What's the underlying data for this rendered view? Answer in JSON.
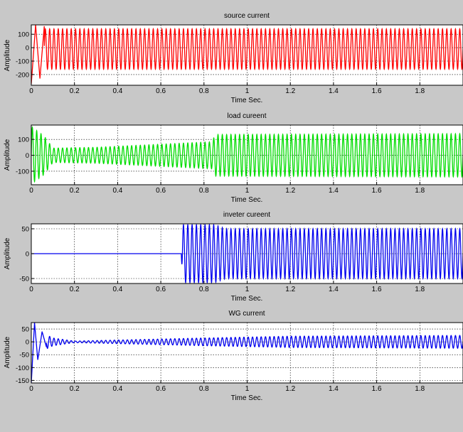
{
  "chart_data": [
    {
      "type": "line",
      "title": "source current",
      "xlabel": "Time Sec.",
      "ylabel": "Amplitude",
      "xlim": [
        0,
        2
      ],
      "ylim": [
        -280,
        170
      ],
      "xticks": [
        0,
        0.2,
        0.4,
        0.6,
        0.8,
        1,
        1.2,
        1.4,
        1.6,
        1.8
      ],
      "xtick_labels": [
        "0",
        "0.2",
        "0.4",
        "0.6",
        "0.8",
        "1",
        "1.2",
        "1.4",
        "1.6",
        "1.8"
      ],
      "yticks": [
        -200,
        -100,
        0,
        100
      ],
      "ytick_labels": [
        "-200",
        "-100",
        "0",
        "100"
      ],
      "grid": true,
      "series": [
        {
          "color": "#ff0000",
          "frequency_hz": 50,
          "amplitude_envelope": [
            [
              0,
              150
            ],
            [
              2,
              150
            ]
          ],
          "offset": -10,
          "transient": [
            [
              0,
              -270
            ],
            [
              0.02,
              170
            ],
            [
              0.04,
              -230
            ],
            [
              0.06,
              160
            ]
          ]
        }
      ]
    },
    {
      "type": "line",
      "title": "load cureent",
      "xlabel": "Time Sec.",
      "ylabel": "Amplitude",
      "xlim": [
        0,
        2
      ],
      "ylim": [
        -185,
        190
      ],
      "xticks": [
        0,
        0.2,
        0.4,
        0.6,
        0.8,
        1,
        1.2,
        1.4,
        1.6,
        1.8
      ],
      "xtick_labels": [
        "0",
        "0.2",
        "0.4",
        "0.6",
        "0.8",
        "1",
        "1.2",
        "1.4",
        "1.6",
        "1.8"
      ],
      "yticks": [
        -100,
        0,
        100
      ],
      "ytick_labels": [
        "-100",
        "0",
        "100"
      ],
      "grid": true,
      "series": [
        {
          "color": "#00dd00",
          "frequency_hz": 50,
          "amplitude_envelope": [
            [
              0,
              180
            ],
            [
              0.06,
              120
            ],
            [
              0.1,
              45
            ],
            [
              0.3,
              50
            ],
            [
              0.84,
              85
            ],
            [
              0.85,
              130
            ],
            [
              2,
              135
            ]
          ],
          "offset": 0,
          "transient": []
        }
      ]
    },
    {
      "type": "line",
      "title": "inveter cureent",
      "xlabel": "Time Sec.",
      "ylabel": "Amplitude",
      "xlim": [
        0,
        2
      ],
      "ylim": [
        -60,
        60
      ],
      "xticks": [
        0,
        0.2,
        0.4,
        0.6,
        0.8,
        1,
        1.2,
        1.4,
        1.6,
        1.8
      ],
      "xtick_labels": [
        "0",
        "0.2",
        "0.4",
        "0.6",
        "0.8",
        "1",
        "1.2",
        "1.4",
        "1.6",
        "1.8"
      ],
      "yticks": [
        -50,
        0,
        50
      ],
      "ytick_labels": [
        "-50",
        "0",
        "50"
      ],
      "grid": true,
      "series": [
        {
          "color": "#0000ee",
          "frequency_hz": 50,
          "amplitude_envelope": [
            [
              0,
              0
            ],
            [
              0.695,
              0
            ],
            [
              0.7,
              58
            ],
            [
              0.85,
              58
            ],
            [
              0.9,
              50
            ],
            [
              2,
              50
            ]
          ],
          "offset": 0,
          "transient": []
        }
      ]
    },
    {
      "type": "line",
      "title": "WG current",
      "xlabel": "Time Sec.",
      "ylabel": "Amplitude",
      "xlim": [
        0,
        2
      ],
      "ylim": [
        -160,
        75
      ],
      "xticks": [
        0,
        0.2,
        0.4,
        0.6,
        0.8,
        1,
        1.2,
        1.4,
        1.6,
        1.8
      ],
      "xtick_labels": [
        "0",
        "0.2",
        "0.4",
        "0.6",
        "0.8",
        "1",
        "1.2",
        "1.4",
        "1.6",
        "1.8"
      ],
      "yticks": [
        -150,
        -100,
        -50,
        0,
        50
      ],
      "ytick_labels": [
        "-150",
        "-100",
        "-50",
        "0",
        "50"
      ],
      "grid": true,
      "series": [
        {
          "color": "#0000ee",
          "frequency_hz": 50,
          "amplitude_envelope": [
            [
              0,
              0
            ],
            [
              0.04,
              40
            ],
            [
              0.1,
              15
            ],
            [
              0.2,
              3
            ],
            [
              0.3,
              5
            ],
            [
              0.8,
              15
            ],
            [
              1.2,
              22
            ],
            [
              2,
              25
            ]
          ],
          "offset": 0,
          "transient": [
            [
              0,
              -160
            ],
            [
              0.015,
              75
            ],
            [
              0.03,
              -70
            ],
            [
              0.05,
              40
            ],
            [
              0.07,
              -20
            ]
          ]
        }
      ]
    }
  ]
}
